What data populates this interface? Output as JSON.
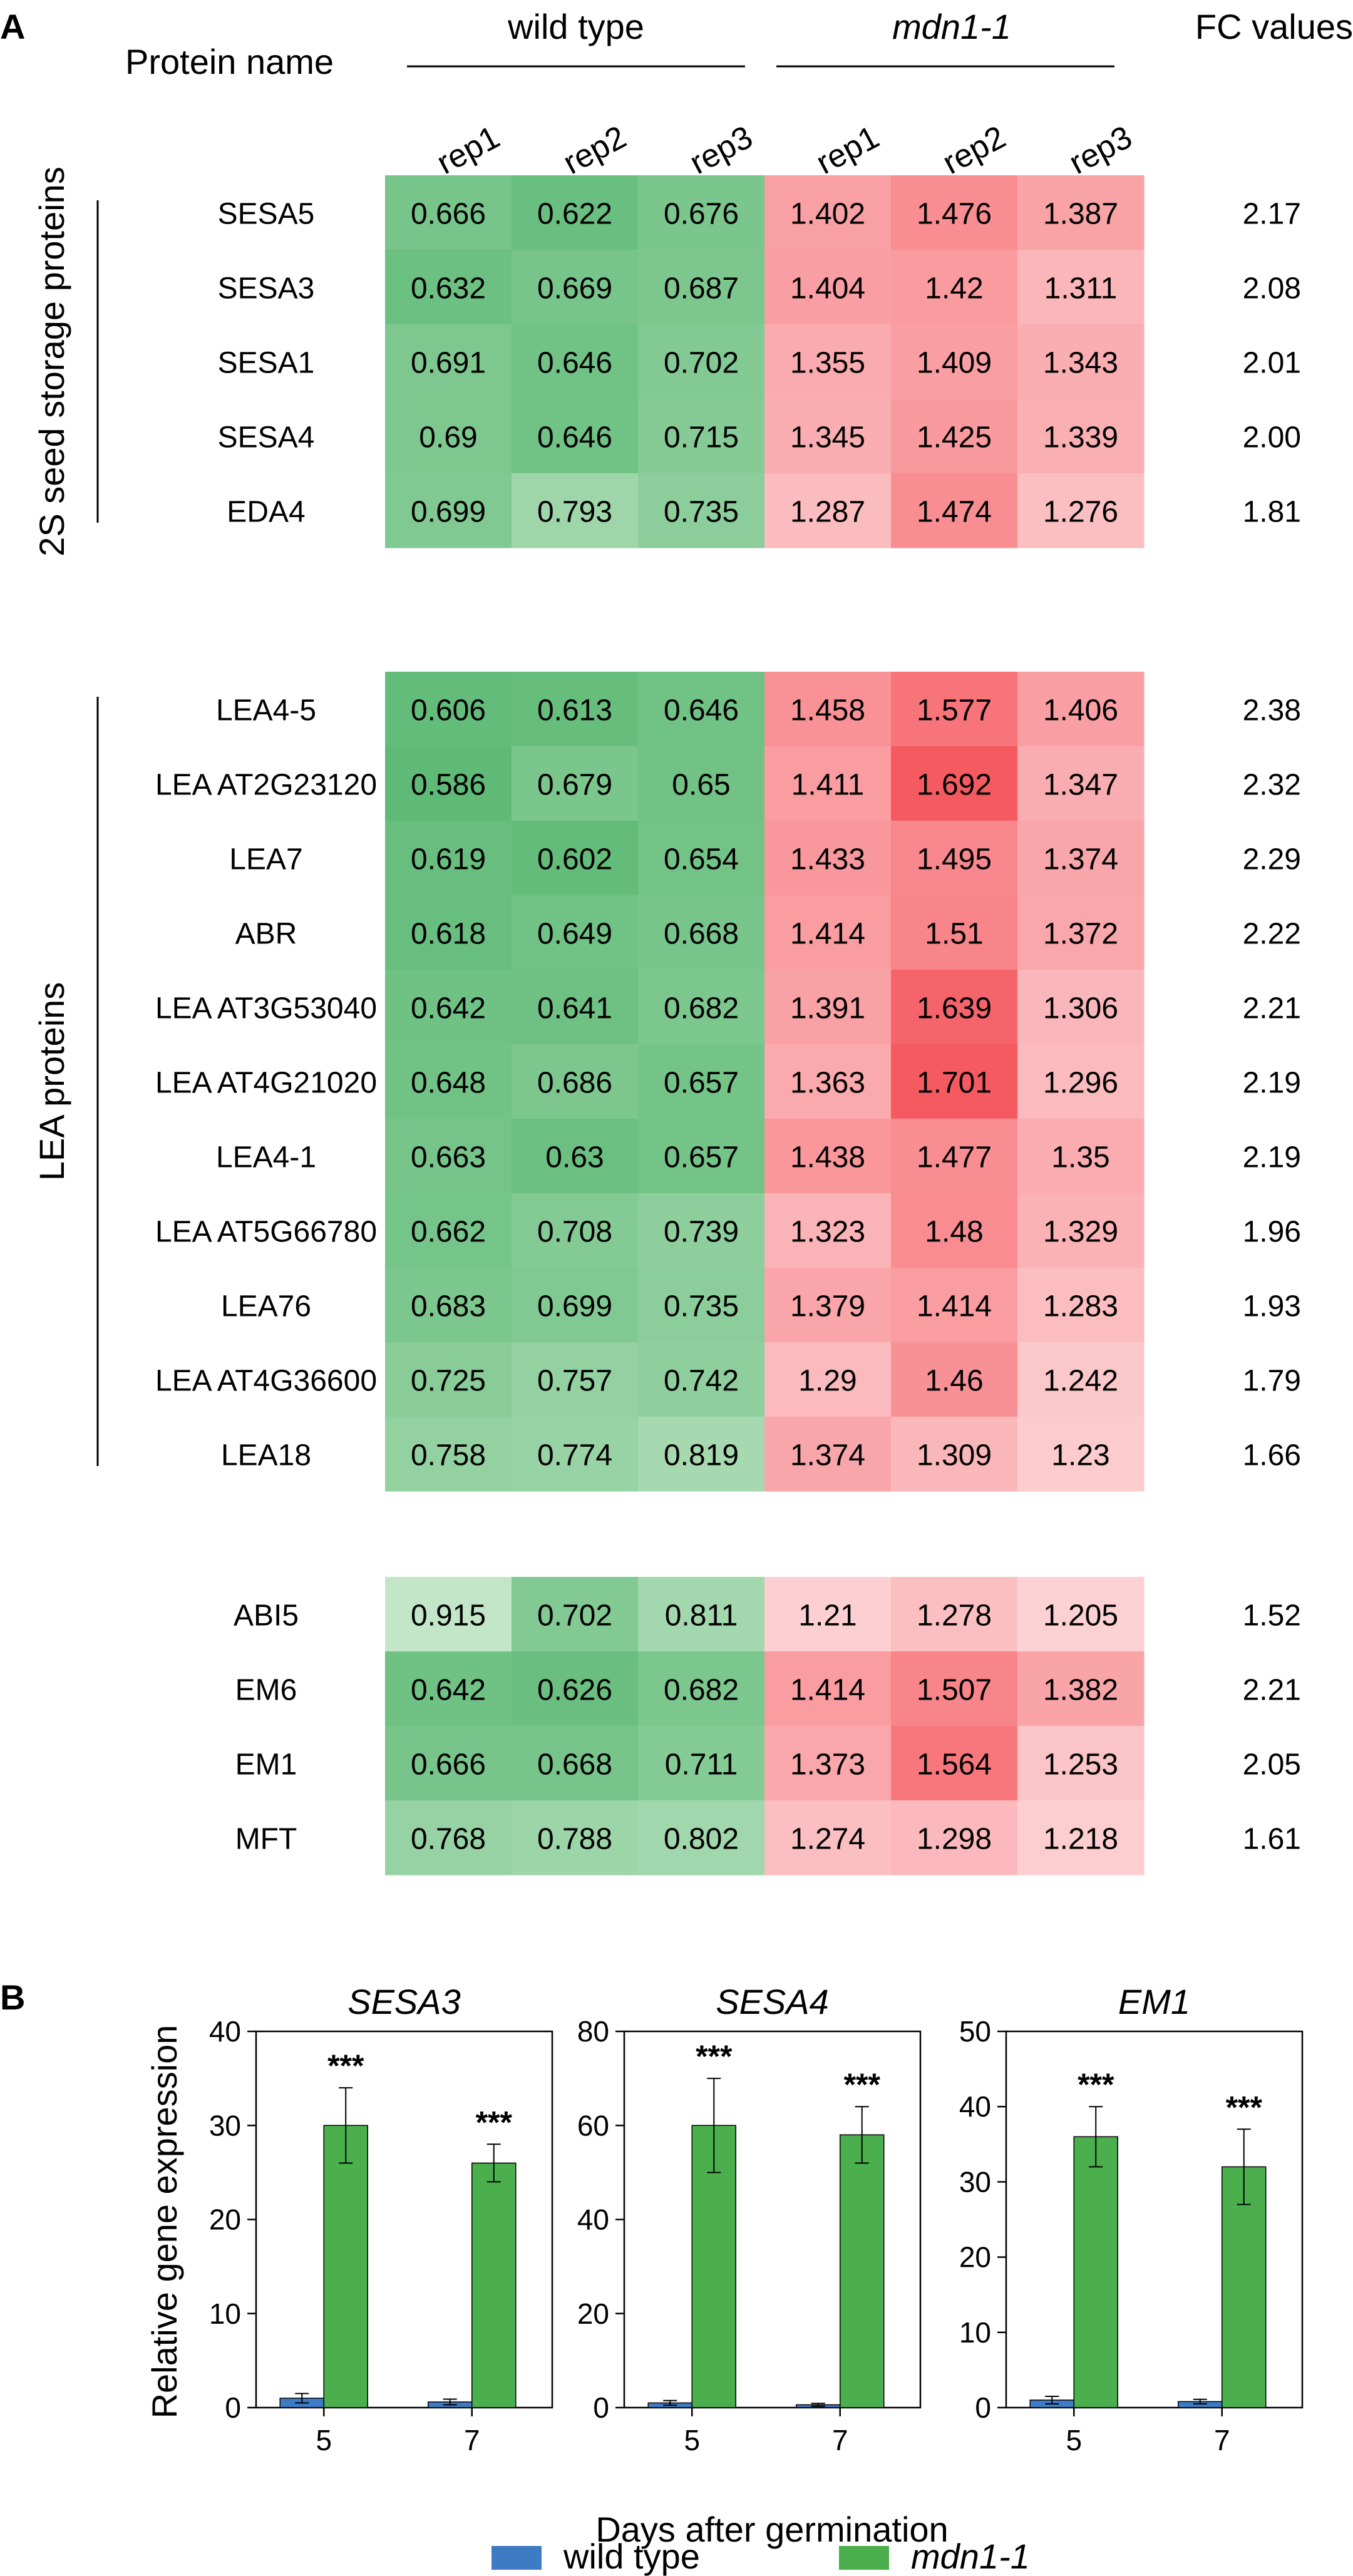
{
  "panel_a": {
    "label": "A",
    "header": {
      "protein_name": "Protein name",
      "wild_type": "wild type",
      "mutant": "mdn1-1",
      "fc": "FC values",
      "reps": [
        "rep1",
        "rep2",
        "rep3",
        "rep1",
        "rep2",
        "rep3"
      ]
    },
    "colors": {
      "green_low": "#c8e8cc",
      "green_high": "#5cb974",
      "red_low": "#fcd2d4",
      "red_high": "#f55a61"
    },
    "groups": [
      {
        "label": "2S seed storage proteins",
        "rows": [
          {
            "name": "SESA5",
            "wt": [
              "0.666",
              "0.622",
              "0.676"
            ],
            "mut": [
              "1.402",
              "1.476",
              "1.387"
            ],
            "fc": "2.17"
          },
          {
            "name": "SESA3",
            "wt": [
              "0.632",
              "0.669",
              "0.687"
            ],
            "mut": [
              "1.404",
              "1.42",
              "1.311"
            ],
            "fc": "2.08"
          },
          {
            "name": "SESA1",
            "wt": [
              "0.691",
              "0.646",
              "0.702"
            ],
            "mut": [
              "1.355",
              "1.409",
              "1.343"
            ],
            "fc": "2.01"
          },
          {
            "name": "SESA4",
            "wt": [
              "0.69",
              "0.646",
              "0.715"
            ],
            "mut": [
              "1.345",
              "1.425",
              "1.339"
            ],
            "fc": "2.00"
          },
          {
            "name": "EDA4",
            "wt": [
              "0.699",
              "0.793",
              "0.735"
            ],
            "mut": [
              "1.287",
              "1.474",
              "1.276"
            ],
            "fc": "1.81"
          }
        ]
      },
      {
        "label": "LEA proteins",
        "rows": [
          {
            "name": "LEA4-5",
            "wt": [
              "0.606",
              "0.613",
              "0.646"
            ],
            "mut": [
              "1.458",
              "1.577",
              "1.406"
            ],
            "fc": "2.38"
          },
          {
            "name": "LEA AT2G23120",
            "wt": [
              "0.586",
              "0.679",
              "0.65"
            ],
            "mut": [
              "1.411",
              "1.692",
              "1.347"
            ],
            "fc": "2.32"
          },
          {
            "name": "LEA7",
            "wt": [
              "0.619",
              "0.602",
              "0.654"
            ],
            "mut": [
              "1.433",
              "1.495",
              "1.374"
            ],
            "fc": "2.29"
          },
          {
            "name": "ABR",
            "wt": [
              "0.618",
              "0.649",
              "0.668"
            ],
            "mut": [
              "1.414",
              "1.51",
              "1.372"
            ],
            "fc": "2.22"
          },
          {
            "name": "LEA AT3G53040",
            "wt": [
              "0.642",
              "0.641",
              "0.682"
            ],
            "mut": [
              "1.391",
              "1.639",
              "1.306"
            ],
            "fc": "2.21"
          },
          {
            "name": "LEA AT4G21020",
            "wt": [
              "0.648",
              "0.686",
              "0.657"
            ],
            "mut": [
              "1.363",
              "1.701",
              "1.296"
            ],
            "fc": "2.19"
          },
          {
            "name": "LEA4-1",
            "wt": [
              "0.663",
              "0.63",
              "0.657"
            ],
            "mut": [
              "1.438",
              "1.477",
              "1.35"
            ],
            "fc": "2.19"
          },
          {
            "name": "LEA AT5G66780",
            "wt": [
              "0.662",
              "0.708",
              "0.739"
            ],
            "mut": [
              "1.323",
              "1.48",
              "1.329"
            ],
            "fc": "1.96"
          },
          {
            "name": "LEA76",
            "wt": [
              "0.683",
              "0.699",
              "0.735"
            ],
            "mut": [
              "1.379",
              "1.414",
              "1.283"
            ],
            "fc": "1.93"
          },
          {
            "name": "LEA AT4G36600",
            "wt": [
              "0.725",
              "0.757",
              "0.742"
            ],
            "mut": [
              "1.29",
              "1.46",
              "1.242"
            ],
            "fc": "1.79"
          },
          {
            "name": "LEA18",
            "wt": [
              "0.758",
              "0.774",
              "0.819"
            ],
            "mut": [
              "1.374",
              "1.309",
              "1.23"
            ],
            "fc": "1.66"
          }
        ]
      },
      {
        "label": "",
        "rows": [
          {
            "name": "ABI5",
            "wt": [
              "0.915",
              "0.702",
              "0.811"
            ],
            "mut": [
              "1.21",
              "1.278",
              "1.205"
            ],
            "fc": "1.52"
          },
          {
            "name": "EM6",
            "wt": [
              "0.642",
              "0.626",
              "0.682"
            ],
            "mut": [
              "1.414",
              "1.507",
              "1.382"
            ],
            "fc": "2.21"
          },
          {
            "name": "EM1",
            "wt": [
              "0.666",
              "0.668",
              "0.711"
            ],
            "mut": [
              "1.373",
              "1.564",
              "1.253"
            ],
            "fc": "2.05"
          },
          {
            "name": "MFT",
            "wt": [
              "0.768",
              "0.788",
              "0.802"
            ],
            "mut": [
              "1.274",
              "1.298",
              "1.218"
            ],
            "fc": "1.61"
          }
        ]
      }
    ]
  },
  "panel_b": {
    "label": "B",
    "ylabel": "Relative gene expression",
    "xlabel": "Days after germination",
    "legend": [
      {
        "name": "wild type",
        "color": "#3d7cc4",
        "italic": false
      },
      {
        "name": "mdn1-1",
        "color": "#4aaf4c",
        "italic": true
      }
    ]
  },
  "chart_data": [
    {
      "type": "bar",
      "title": "SESA3",
      "categories": [
        "5",
        "7"
      ],
      "ylim": [
        0,
        40
      ],
      "yticks": [
        0,
        10,
        20,
        30,
        40
      ],
      "series": [
        {
          "name": "wild type",
          "values": [
            1.0,
            0.6
          ],
          "errors": [
            0.5,
            0.3
          ]
        },
        {
          "name": "mdn1-1",
          "values": [
            30,
            26
          ],
          "errors": [
            4,
            2
          ]
        }
      ],
      "annotations": [
        "***",
        "***"
      ]
    },
    {
      "type": "bar",
      "title": "SESA4",
      "categories": [
        "5",
        "7"
      ],
      "ylim": [
        0,
        80
      ],
      "yticks": [
        0,
        20,
        40,
        60,
        80
      ],
      "series": [
        {
          "name": "wild type",
          "values": [
            1.0,
            0.6
          ],
          "errors": [
            0.5,
            0.3
          ]
        },
        {
          "name": "mdn1-1",
          "values": [
            60,
            58
          ],
          "errors": [
            10,
            6
          ]
        }
      ],
      "annotations": [
        "***",
        "***"
      ]
    },
    {
      "type": "bar",
      "title": "EM1",
      "categories": [
        "5",
        "7"
      ],
      "ylim": [
        0,
        50
      ],
      "yticks": [
        0,
        10,
        20,
        30,
        40,
        50
      ],
      "series": [
        {
          "name": "wild type",
          "values": [
            1.0,
            0.8
          ],
          "errors": [
            0.5,
            0.3
          ]
        },
        {
          "name": "mdn1-1",
          "values": [
            36,
            32
          ],
          "errors": [
            4,
            5
          ]
        }
      ],
      "annotations": [
        "***",
        "***"
      ]
    }
  ]
}
